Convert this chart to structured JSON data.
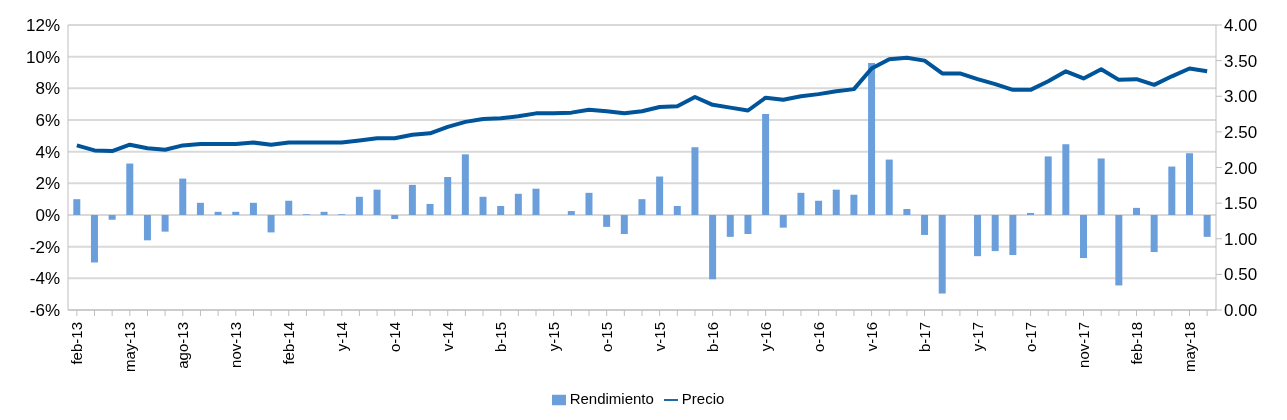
{
  "chart_data": {
    "type": "bar",
    "categories": [
      "feb-13",
      null,
      null,
      "may-13",
      null,
      null,
      "ago-13",
      null,
      null,
      "nov-13",
      null,
      null,
      "feb-14",
      null,
      null,
      "y-14",
      null,
      null,
      "o-14",
      null,
      null,
      "v-14",
      null,
      null,
      "b-15",
      null,
      null,
      "y-15",
      null,
      null,
      "o-15",
      null,
      null,
      "v-15",
      null,
      null,
      "b-16",
      null,
      null,
      "y-16",
      null,
      null,
      "o-16",
      null,
      null,
      "v-16",
      null,
      null,
      "b-17",
      null,
      null,
      "y-17",
      null,
      null,
      "o-17",
      null,
      null,
      "nov-17",
      null,
      null,
      "feb-18",
      null,
      null,
      "may-18",
      null
    ],
    "series": [
      {
        "name": "Rendimiento",
        "color": "#6a9fdc",
        "values": [
          1.0,
          -3.0,
          -0.3,
          3.25,
          -1.6,
          -1.05,
          2.3,
          0.77,
          0.2,
          0.2,
          0.77,
          -1.1,
          0.9,
          0.05,
          0.2,
          0.05,
          1.15,
          1.6,
          -0.25,
          1.9,
          0.7,
          2.4,
          3.83,
          1.15,
          0.57,
          1.34,
          1.66,
          0,
          0.25,
          1.4,
          -0.75,
          -1.2,
          1.0,
          2.43,
          0.57,
          4.28,
          -4.06,
          -1.38,
          -1.2,
          6.38,
          -0.8,
          1.4,
          0.9,
          1.6,
          1.28,
          9.6,
          3.5,
          0.38,
          -1.26,
          -4.96,
          0,
          -2.6,
          -2.28,
          -2.53,
          0.13,
          3.7,
          4.47,
          -2.72,
          3.57,
          -4.45,
          0.45,
          -2.34,
          3.06,
          3.9,
          -1.38
        ]
      },
      {
        "name": "Precio",
        "type": "line",
        "axis": "y2",
        "color": "#005499",
        "values": [
          2.31,
          2.24,
          2.23,
          2.32,
          2.27,
          2.25,
          2.31,
          2.33,
          2.33,
          2.33,
          2.35,
          2.32,
          2.35,
          2.35,
          2.35,
          2.35,
          2.38,
          2.41,
          2.41,
          2.46,
          2.48,
          2.57,
          2.64,
          2.68,
          2.69,
          2.72,
          2.76,
          2.76,
          2.77,
          2.81,
          2.79,
          2.76,
          2.79,
          2.85,
          2.86,
          2.99,
          2.88,
          2.84,
          2.8,
          2.98,
          2.95,
          3.0,
          3.03,
          3.07,
          3.1,
          3.39,
          3.52,
          3.54,
          3.5,
          3.32,
          3.32,
          3.24,
          3.17,
          3.09,
          3.09,
          3.21,
          3.35,
          3.25,
          3.38,
          3.23,
          3.24,
          3.16,
          3.28,
          3.39,
          3.35
        ]
      }
    ],
    "ylim": [
      -6,
      12
    ],
    "yticks": [
      {
        "value": -6,
        "label": "-6%"
      },
      {
        "value": -4,
        "label": "-4%"
      },
      {
        "value": -2,
        "label": "-2%"
      },
      {
        "value": 0,
        "label": "0%"
      },
      {
        "value": 2,
        "label": "2%"
      },
      {
        "value": 4,
        "label": "4%"
      },
      {
        "value": 6,
        "label": "6%"
      },
      {
        "value": 8,
        "label": "8%"
      },
      {
        "value": 10,
        "label": "10%"
      },
      {
        "value": 12,
        "label": "12%"
      }
    ],
    "y2lim": [
      0,
      4
    ],
    "y2ticks": [
      {
        "value": 0,
        "label": "0.00"
      },
      {
        "value": 0.5,
        "label": "0.50"
      },
      {
        "value": 1,
        "label": "1.00"
      },
      {
        "value": 1.5,
        "label": "1.50"
      },
      {
        "value": 2,
        "label": "2.00"
      },
      {
        "value": 2.5,
        "label": "2.50"
      },
      {
        "value": 3,
        "label": "3.00"
      },
      {
        "value": 3.5,
        "label": "3.50"
      },
      {
        "value": 4,
        "label": "4.00"
      }
    ],
    "grid": "y",
    "legend": "bottom",
    "marker": "none",
    "line_style": "solid"
  }
}
